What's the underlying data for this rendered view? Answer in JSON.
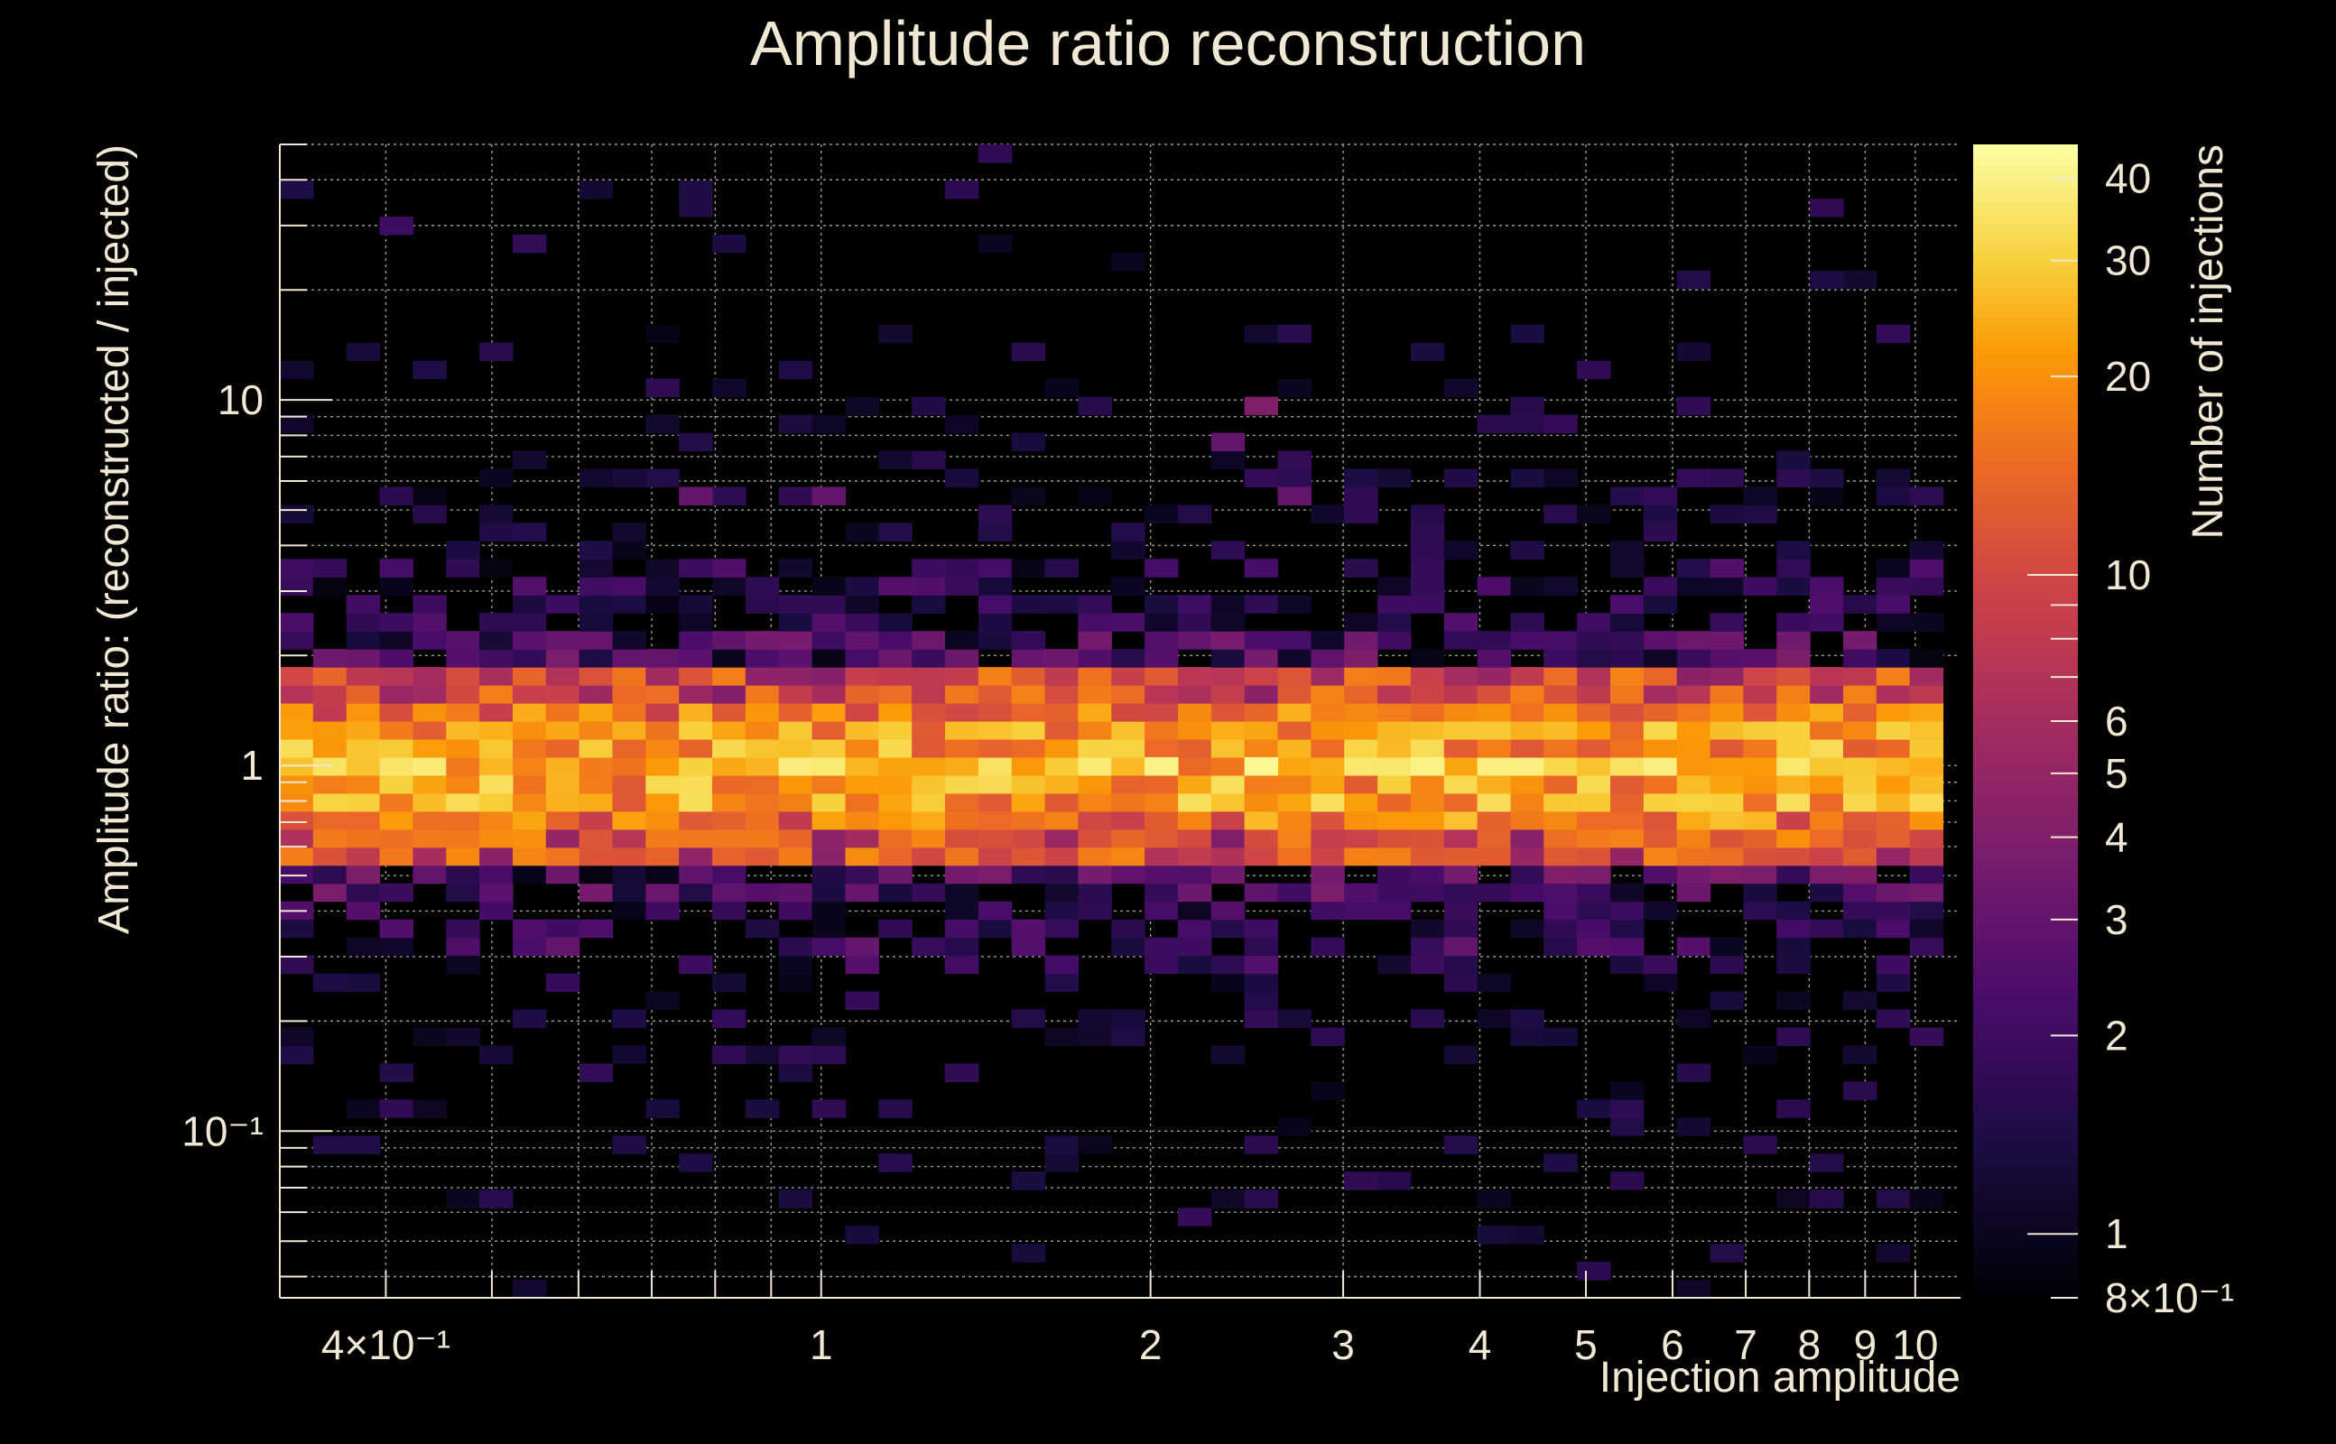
{
  "chart_data": {
    "type": "heatmap",
    "title": "Amplitude ratio reconstruction",
    "xlabel": "Injection amplitude",
    "ylabel": "Amplitude ratio: (reconstructed / injected)",
    "zlabel": "Number of injections",
    "x_scale": "log",
    "y_scale": "log",
    "z_scale": "log",
    "xlim": [
      0.32,
      11
    ],
    "ylim": [
      0.035,
      50
    ],
    "zlim": [
      0.8,
      45
    ],
    "grid": true,
    "colormap": "inferno",
    "x_ticks": [
      {
        "value": 0.4,
        "label": "4×10⁻¹"
      },
      {
        "value": 1,
        "label": "1"
      },
      {
        "value": 2,
        "label": "2"
      },
      {
        "value": 3,
        "label": "3"
      },
      {
        "value": 4,
        "label": "4"
      },
      {
        "value": 5,
        "label": "5"
      },
      {
        "value": 6,
        "label": "6"
      },
      {
        "value": 7,
        "label": "7"
      },
      {
        "value": 8,
        "label": "8"
      },
      {
        "value": 9,
        "label": "9"
      },
      {
        "value": 10,
        "label": "10"
      }
    ],
    "y_ticks": [
      {
        "value": 0.1,
        "label": "10⁻¹"
      },
      {
        "value": 1,
        "label": "1"
      },
      {
        "value": 10,
        "label": "10"
      }
    ],
    "z_ticks": [
      {
        "value": 0.8,
        "label": "8×10⁻¹"
      },
      {
        "value": 1,
        "label": "1"
      },
      {
        "value": 2,
        "label": "2"
      },
      {
        "value": 3,
        "label": "3"
      },
      {
        "value": 4,
        "label": "4"
      },
      {
        "value": 5,
        "label": "5"
      },
      {
        "value": 6,
        "label": "6"
      },
      {
        "value": 10,
        "label": "10"
      },
      {
        "value": 20,
        "label": "20"
      },
      {
        "value": 30,
        "label": "30"
      },
      {
        "value": 40,
        "label": "40"
      }
    ],
    "x_bins": {
      "min": 0.32,
      "max": 10.6,
      "count": 50
    },
    "y_bins": {
      "min": 0.035,
      "max": 50,
      "count": 64
    },
    "band_profile": [
      {
        "ratio": 0.58,
        "counts": [
          4,
          20
        ]
      },
      {
        "ratio": 0.7,
        "counts": [
          8,
          28
        ]
      },
      {
        "ratio": 0.85,
        "counts": [
          12,
          34
        ]
      },
      {
        "ratio": 1.0,
        "counts": [
          14,
          40
        ]
      },
      {
        "ratio": 1.18,
        "counts": [
          12,
          34
        ]
      },
      {
        "ratio": 1.4,
        "counts": [
          8,
          26
        ]
      },
      {
        "ratio": 1.7,
        "counts": [
          4,
          18
        ]
      }
    ],
    "peak_cells": [
      {
        "x": 2.05,
        "y": 1.0,
        "count": 40
      },
      {
        "x": 2.45,
        "y": 1.0,
        "count": 42
      },
      {
        "x": 3.65,
        "y": 1.0,
        "count": 40
      },
      {
        "x": 0.52,
        "y": 0.9,
        "count": 34
      }
    ],
    "outlier_cells": [
      {
        "x": 0.4,
        "y": 30,
        "count": 2
      },
      {
        "x": 2.6,
        "y": 10,
        "count": 4
      },
      {
        "x": 2.35,
        "y": 7.6,
        "count": 3
      },
      {
        "x": 1.0,
        "y": 5.2,
        "count": 3
      },
      {
        "x": 0.77,
        "y": 5.2,
        "count": 3
      },
      {
        "x": 2.75,
        "y": 5.2,
        "count": 3
      },
      {
        "x": 1.1,
        "y": 0.31,
        "count": 3
      },
      {
        "x": 0.6,
        "y": 0.31,
        "count": 3
      },
      {
        "x": 3.9,
        "y": 0.31,
        "count": 3
      },
      {
        "x": 6.1,
        "y": 22,
        "count": 1.5
      },
      {
        "x": 8.5,
        "y": 22,
        "count": 1.4
      },
      {
        "x": 9.3,
        "y": 0.045,
        "count": 1.2
      },
      {
        "x": 1.12,
        "y": 0.052,
        "count": 1.3
      },
      {
        "x": 4.5,
        "y": 0.053,
        "count": 1.2
      }
    ]
  }
}
